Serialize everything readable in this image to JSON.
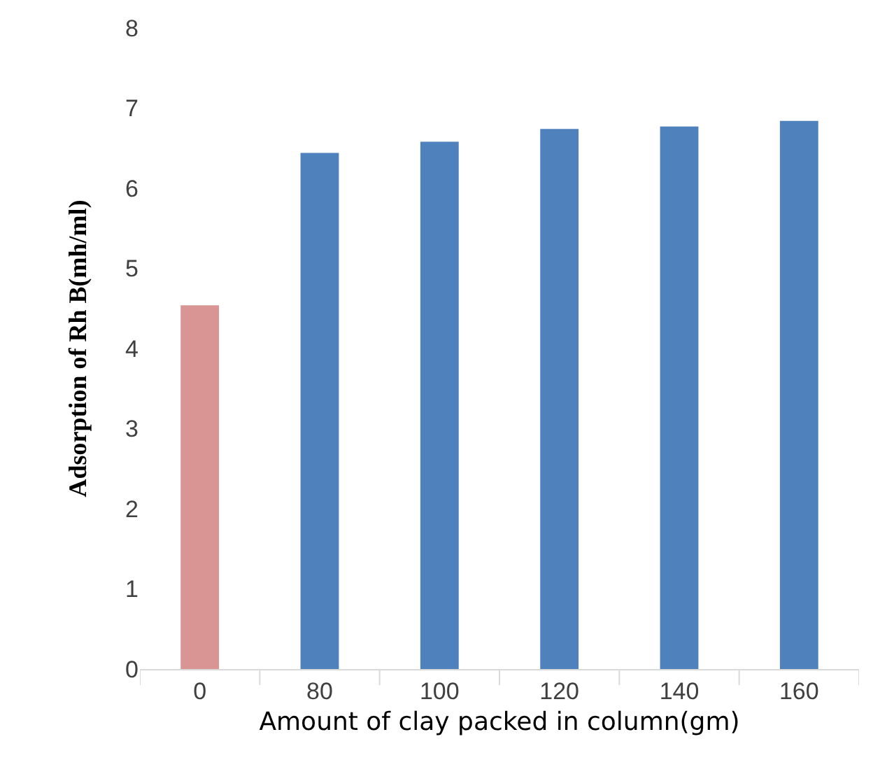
{
  "chart_data": {
    "type": "bar",
    "xlabel": "Amount of clay packed in column(gm)",
    "ylabel": "Adsorption of Rh B(mh/ml)",
    "categories": [
      "0",
      "80",
      "100",
      "120",
      "140",
      "160"
    ],
    "values": [
      4.54,
      6.44,
      6.58,
      6.74,
      6.77,
      6.84
    ],
    "colors": [
      "#d99594",
      "#4f81bd",
      "#4f81bd",
      "#4f81bd",
      "#4f81bd",
      "#4f81bd"
    ],
    "ylim": [
      0,
      8
    ],
    "yticks": [
      0,
      1,
      2,
      3,
      4,
      5,
      6,
      7,
      8
    ],
    "grid": false
  }
}
